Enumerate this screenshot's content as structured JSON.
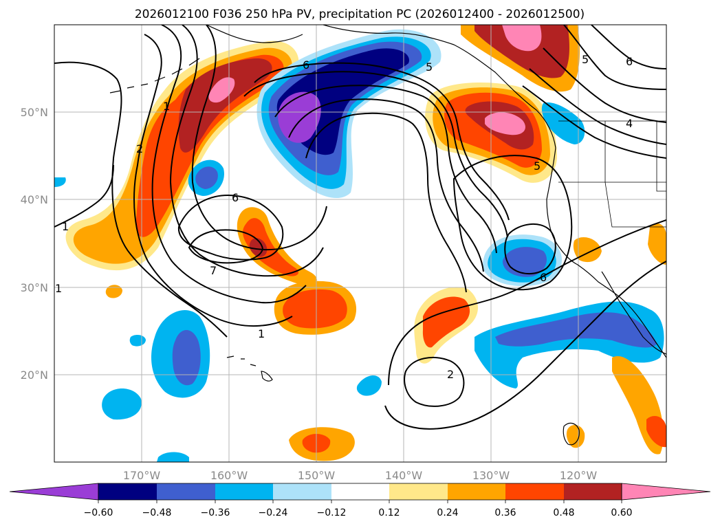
{
  "title": "2026012100 F036 250 hPa PV, precipitation PC (2026012400 - 2026012500)",
  "map": {
    "lon_labels": [
      "170°W",
      "160°W",
      "150°W",
      "140°W",
      "130°W",
      "120°W"
    ],
    "lat_labels": [
      "50°N",
      "40°N",
      "30°N",
      "20°N"
    ],
    "lon_range": [
      -180,
      -110
    ],
    "lat_range": [
      10,
      60
    ],
    "contour_labels": [
      "6",
      "5",
      "6",
      "4",
      "5",
      "2",
      "1",
      "6",
      "7",
      "1",
      "1",
      "6",
      "2",
      "5",
      "1"
    ],
    "fill_colors": {
      "neg_extreme": "#9a3dd6",
      "neg_060": "#000080",
      "neg_048": "#3f5fcf",
      "neg_036": "#00b4f0",
      "neg_024": "#ade2f9",
      "pos_012": "#ffe88a",
      "pos_024": "#ffa500",
      "pos_036": "#ff4500",
      "pos_048": "#b22222",
      "pos_extreme": "#ff85b5"
    }
  },
  "colorbar": {
    "tick_labels": [
      "−0.60",
      "−0.48",
      "−0.36",
      "−0.24",
      "−0.12",
      "0.12",
      "0.24",
      "0.36",
      "0.48",
      "0.60"
    ],
    "colors": [
      "#9a3dd6",
      "#000080",
      "#3f5fcf",
      "#00b4f0",
      "#ade2f9",
      "#ffffff",
      "#ffe88a",
      "#ffa500",
      "#ff4500",
      "#b22222",
      "#ff85b5"
    ]
  }
}
